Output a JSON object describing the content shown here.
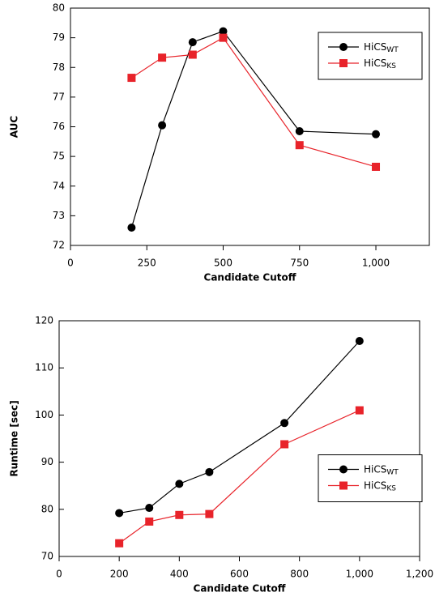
{
  "chart_data": [
    {
      "type": "line",
      "x_label": "Candidate Cutoff",
      "y_label": "AUC",
      "x": [
        200,
        300,
        400,
        500,
        750,
        1000
      ],
      "xlim": [
        0,
        1175
      ],
      "xticks": [
        0,
        250,
        500,
        750,
        {
          "value": 1000,
          "label": "1,000"
        }
      ],
      "ylim": [
        72,
        80
      ],
      "yticks": [
        72,
        73,
        74,
        75,
        76,
        77,
        78,
        79,
        80
      ],
      "legend": "upper right",
      "series": [
        {
          "name": "HiCS",
          "subscript": "WT",
          "color": "#000000",
          "marker": "circle",
          "values": [
            72.6,
            76.05,
            78.85,
            79.22,
            75.85,
            75.75
          ]
        },
        {
          "name": "HiCS",
          "subscript": "KS",
          "color": "#e8232a",
          "marker": "square",
          "values": [
            77.65,
            78.33,
            78.43,
            79.0,
            75.38,
            74.65
          ]
        }
      ]
    },
    {
      "type": "line",
      "x_label": "Candidate Cutoff",
      "y_label": "Runtime [sec]",
      "x": [
        200,
        300,
        400,
        500,
        750,
        1000
      ],
      "xlim": [
        0,
        1200
      ],
      "xticks": [
        0,
        200,
        400,
        600,
        800,
        {
          "value": 1000,
          "label": "1,000"
        },
        {
          "value": 1200,
          "label": "1,200"
        }
      ],
      "ylim": [
        70,
        120
      ],
      "yticks": [
        70,
        80,
        90,
        100,
        110,
        120
      ],
      "legend": "center right",
      "series": [
        {
          "name": "HiCS",
          "subscript": "WT",
          "color": "#000000",
          "marker": "circle",
          "values": [
            79.2,
            80.3,
            85.4,
            87.9,
            98.3,
            115.7
          ]
        },
        {
          "name": "HiCS",
          "subscript": "KS",
          "color": "#e8232a",
          "marker": "square",
          "values": [
            72.8,
            77.4,
            78.8,
            79.0,
            93.8,
            101.0
          ]
        }
      ]
    }
  ]
}
